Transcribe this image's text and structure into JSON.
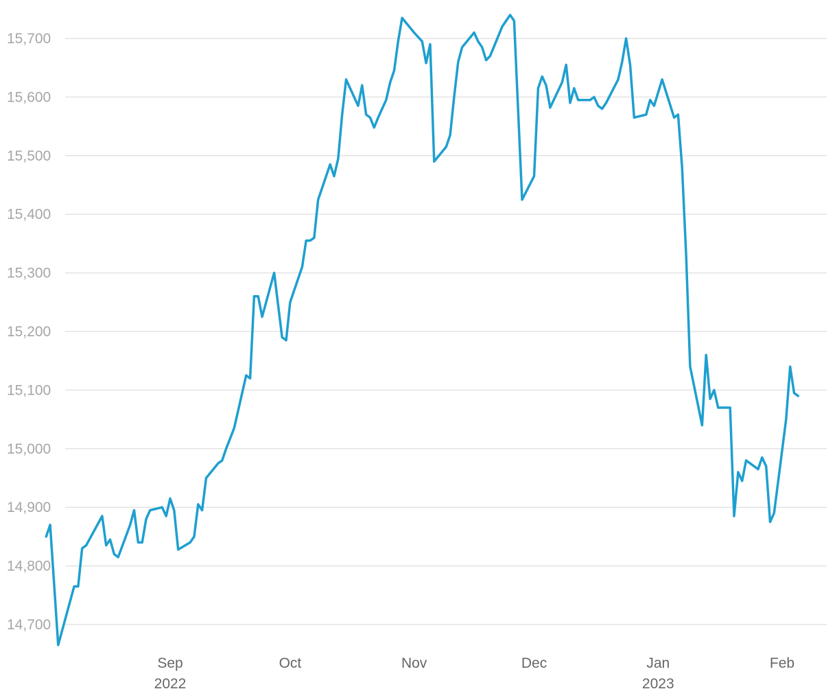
{
  "chart_data": {
    "type": "line",
    "title": "",
    "xlabel": "",
    "ylabel": "",
    "ylim": [
      14650,
      15750
    ],
    "y_ticks": [
      "14,700",
      "14,800",
      "14,900",
      "15,000",
      "15,100",
      "15,200",
      "15,300",
      "15,400",
      "15,500",
      "15,600",
      "15,700"
    ],
    "y_tick_values": [
      14700,
      14800,
      14900,
      15000,
      15100,
      15200,
      15300,
      15400,
      15500,
      15600,
      15700
    ],
    "x_ticks": [
      {
        "label": "Sep",
        "sub": "2022",
        "date": "2022-09-01"
      },
      {
        "label": "Oct",
        "sub": "",
        "date": "2022-10-01"
      },
      {
        "label": "Nov",
        "sub": "",
        "date": "2022-11-01"
      },
      {
        "label": "Dec",
        "sub": "",
        "date": "2022-12-01"
      },
      {
        "label": "Jan",
        "sub": "2023",
        "date": "2023-01-01"
      },
      {
        "label": "Feb",
        "sub": "",
        "date": "2023-02-01"
      }
    ],
    "grid": true,
    "legend": "none",
    "colors": {
      "line": "#1e9fcf",
      "grid": "#e3e3e3",
      "tick": "#a6a6a6",
      "xtick": "#666666"
    },
    "series": [
      {
        "points": [
          [
            "2022-08-01",
            14850
          ],
          [
            "2022-08-02",
            14870
          ],
          [
            "2022-08-04",
            14665
          ],
          [
            "2022-08-08",
            14765
          ],
          [
            "2022-08-09",
            14765
          ],
          [
            "2022-08-10",
            14830
          ],
          [
            "2022-08-11",
            14835
          ],
          [
            "2022-08-15",
            14885
          ],
          [
            "2022-08-16",
            14835
          ],
          [
            "2022-08-17",
            14845
          ],
          [
            "2022-08-18",
            14820
          ],
          [
            "2022-08-19",
            14815
          ],
          [
            "2022-08-22",
            14870
          ],
          [
            "2022-08-23",
            14895
          ],
          [
            "2022-08-24",
            14840
          ],
          [
            "2022-08-25",
            14840
          ],
          [
            "2022-08-26",
            14880
          ],
          [
            "2022-08-27",
            14895
          ],
          [
            "2022-08-30",
            14900
          ],
          [
            "2022-08-31",
            14885
          ],
          [
            "2022-09-01",
            14915
          ],
          [
            "2022-09-02",
            14895
          ],
          [
            "2022-09-03",
            14828
          ],
          [
            "2022-09-06",
            14840
          ],
          [
            "2022-09-07",
            14850
          ],
          [
            "2022-09-08",
            14905
          ],
          [
            "2022-09-09",
            14895
          ],
          [
            "2022-09-10",
            14950
          ],
          [
            "2022-09-13",
            14975
          ],
          [
            "2022-09-14",
            14980
          ],
          [
            "2022-09-15",
            15000
          ],
          [
            "2022-09-17",
            15035
          ],
          [
            "2022-09-20",
            15125
          ],
          [
            "2022-09-21",
            15120
          ],
          [
            "2022-09-22",
            15260
          ],
          [
            "2022-09-23",
            15260
          ],
          [
            "2022-09-24",
            15225
          ],
          [
            "2022-09-27",
            15300
          ],
          [
            "2022-09-29",
            15190
          ],
          [
            "2022-09-30",
            15185
          ],
          [
            "2022-10-01",
            15250
          ],
          [
            "2022-10-04",
            15310
          ],
          [
            "2022-10-05",
            15355
          ],
          [
            "2022-10-06",
            15355
          ],
          [
            "2022-10-07",
            15360
          ],
          [
            "2022-10-08",
            15425
          ],
          [
            "2022-10-11",
            15485
          ],
          [
            "2022-10-12",
            15465
          ],
          [
            "2022-10-13",
            15495
          ],
          [
            "2022-10-14",
            15570
          ],
          [
            "2022-10-15",
            15630
          ],
          [
            "2022-10-18",
            15585
          ],
          [
            "2022-10-19",
            15620
          ],
          [
            "2022-10-20",
            15570
          ],
          [
            "2022-10-21",
            15565
          ],
          [
            "2022-10-22",
            15548
          ],
          [
            "2022-10-23",
            15565
          ],
          [
            "2022-10-25",
            15595
          ],
          [
            "2022-10-26",
            15625
          ],
          [
            "2022-10-27",
            15645
          ],
          [
            "2022-10-28",
            15695
          ],
          [
            "2022-10-29",
            15735
          ],
          [
            "2022-11-01",
            15710
          ],
          [
            "2022-11-03",
            15695
          ],
          [
            "2022-11-04",
            15658
          ],
          [
            "2022-11-05",
            15690
          ],
          [
            "2022-11-06",
            15490
          ],
          [
            "2022-11-09",
            15515
          ],
          [
            "2022-11-10",
            15535
          ],
          [
            "2022-11-11",
            15600
          ],
          [
            "2022-11-12",
            15660
          ],
          [
            "2022-11-13",
            15685
          ],
          [
            "2022-11-16",
            15710
          ],
          [
            "2022-11-17",
            15695
          ],
          [
            "2022-11-18",
            15685
          ],
          [
            "2022-11-19",
            15663
          ],
          [
            "2022-11-20",
            15670
          ],
          [
            "2022-11-23",
            15720
          ],
          [
            "2022-11-25",
            15740
          ],
          [
            "2022-11-26",
            15730
          ],
          [
            "2022-11-28",
            15425
          ],
          [
            "2022-12-01",
            15465
          ],
          [
            "2022-12-02",
            15615
          ],
          [
            "2022-12-03",
            15635
          ],
          [
            "2022-12-04",
            15620
          ],
          [
            "2022-12-05",
            15582
          ],
          [
            "2022-12-08",
            15625
          ],
          [
            "2022-12-09",
            15655
          ],
          [
            "2022-12-10",
            15590
          ],
          [
            "2022-12-11",
            15615
          ],
          [
            "2022-12-12",
            15595
          ],
          [
            "2022-12-15",
            15595
          ],
          [
            "2022-12-16",
            15600
          ],
          [
            "2022-12-17",
            15585
          ],
          [
            "2022-12-18",
            15580
          ],
          [
            "2022-12-19",
            15590
          ],
          [
            "2022-12-22",
            15630
          ],
          [
            "2022-12-23",
            15660
          ],
          [
            "2022-12-24",
            15700
          ],
          [
            "2022-12-25",
            15655
          ],
          [
            "2022-12-26",
            15565
          ],
          [
            "2022-12-29",
            15570
          ],
          [
            "2022-12-30",
            15595
          ],
          [
            "2022-12-31",
            15585
          ],
          [
            "2023-01-02",
            15630
          ],
          [
            "2023-01-05",
            15565
          ],
          [
            "2023-01-06",
            15570
          ],
          [
            "2023-01-07",
            15480
          ],
          [
            "2023-01-08",
            15330
          ],
          [
            "2023-01-09",
            15140
          ],
          [
            "2023-01-12",
            15040
          ],
          [
            "2023-01-13",
            15160
          ],
          [
            "2023-01-14",
            15085
          ],
          [
            "2023-01-15",
            15100
          ],
          [
            "2023-01-16",
            15070
          ],
          [
            "2023-01-19",
            15070
          ],
          [
            "2023-01-20",
            14885
          ],
          [
            "2023-01-21",
            14960
          ],
          [
            "2023-01-22",
            14945
          ],
          [
            "2023-01-23",
            14980
          ],
          [
            "2023-01-26",
            14965
          ],
          [
            "2023-01-27",
            14985
          ],
          [
            "2023-01-28",
            14970
          ],
          [
            "2023-01-29",
            14875
          ],
          [
            "2023-01-30",
            14890
          ],
          [
            "2023-02-02",
            15050
          ],
          [
            "2023-02-03",
            15140
          ],
          [
            "2023-02-04",
            15095
          ],
          [
            "2023-02-05",
            15090
          ]
        ]
      }
    ]
  }
}
